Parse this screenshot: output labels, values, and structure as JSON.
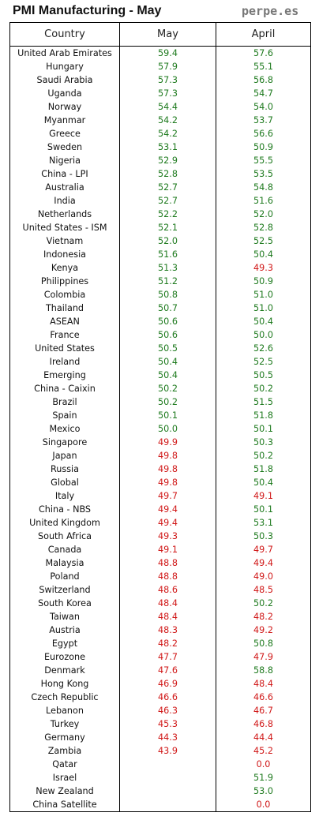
{
  "title": "PMI Manufacturing - May",
  "brand": "perpe.es",
  "colors": {
    "expansion": "#1e7a1e",
    "contraction": "#d01818"
  },
  "headers": {
    "country": "Country",
    "may": "May",
    "april": "April"
  },
  "rows": [
    {
      "country": "United Arab Emirates",
      "may": "59.4",
      "april": "57.6"
    },
    {
      "country": "Hungary",
      "may": "57.9",
      "april": "55.1"
    },
    {
      "country": "Saudi Arabia",
      "may": "57.3",
      "april": "56.8"
    },
    {
      "country": "Uganda",
      "may": "57.3",
      "april": "54.7"
    },
    {
      "country": "Norway",
      "may": "54.4",
      "april": "54.0"
    },
    {
      "country": "Myanmar",
      "may": "54.2",
      "april": "53.7"
    },
    {
      "country": "Greece",
      "may": "54.2",
      "april": "56.6"
    },
    {
      "country": "Sweden",
      "may": "53.1",
      "april": "50.9"
    },
    {
      "country": "Nigeria",
      "may": "52.9",
      "april": "55.5"
    },
    {
      "country": "China - LPI",
      "may": "52.8",
      "april": "53.5"
    },
    {
      "country": "Australia",
      "may": "52.7",
      "april": "54.8"
    },
    {
      "country": "India",
      "may": "52.7",
      "april": "51.6"
    },
    {
      "country": "Netherlands",
      "may": "52.2",
      "april": "52.0"
    },
    {
      "country": "United States - ISM",
      "may": "52.1",
      "april": "52.8"
    },
    {
      "country": "Vietnam",
      "may": "52.0",
      "april": "52.5"
    },
    {
      "country": "Indonesia",
      "may": "51.6",
      "april": "50.4"
    },
    {
      "country": "Kenya",
      "may": "51.3",
      "april": "49.3"
    },
    {
      "country": "Philippines",
      "may": "51.2",
      "april": "50.9"
    },
    {
      "country": "Colombia",
      "may": "50.8",
      "april": "51.0"
    },
    {
      "country": "Thailand",
      "may": "50.7",
      "april": "51.0"
    },
    {
      "country": "ASEAN",
      "may": "50.6",
      "april": "50.4"
    },
    {
      "country": "France",
      "may": "50.6",
      "april": "50.0"
    },
    {
      "country": "United States",
      "may": "50.5",
      "april": "52.6"
    },
    {
      "country": "Ireland",
      "may": "50.4",
      "april": "52.5"
    },
    {
      "country": "Emerging",
      "may": "50.4",
      "april": "50.5"
    },
    {
      "country": "China - Caixin",
      "may": "50.2",
      "april": "50.2"
    },
    {
      "country": "Brazil",
      "may": "50.2",
      "april": "51.5"
    },
    {
      "country": "Spain",
      "may": "50.1",
      "april": "51.8"
    },
    {
      "country": "Mexico",
      "may": "50.0",
      "april": "50.1"
    },
    {
      "country": "Singapore",
      "may": "49.9",
      "april": "50.3"
    },
    {
      "country": "Japan",
      "may": "49.8",
      "april": "50.2"
    },
    {
      "country": "Russia",
      "may": "49.8",
      "april": "51.8"
    },
    {
      "country": "Global",
      "may": "49.8",
      "april": "50.4"
    },
    {
      "country": "Italy",
      "may": "49.7",
      "april": "49.1"
    },
    {
      "country": "China - NBS",
      "may": "49.4",
      "april": "50.1"
    },
    {
      "country": "United Kingdom",
      "may": "49.4",
      "april": "53.1"
    },
    {
      "country": "South Africa",
      "may": "49.3",
      "april": "50.3"
    },
    {
      "country": "Canada",
      "may": "49.1",
      "april": "49.7"
    },
    {
      "country": "Malaysia",
      "may": "48.8",
      "april": "49.4"
    },
    {
      "country": "Poland",
      "may": "48.8",
      "april": "49.0"
    },
    {
      "country": "Switzerland",
      "may": "48.6",
      "april": "48.5"
    },
    {
      "country": "South Korea",
      "may": "48.4",
      "april": "50.2"
    },
    {
      "country": "Taiwan",
      "may": "48.4",
      "april": "48.2"
    },
    {
      "country": "Austria",
      "may": "48.3",
      "april": "49.2"
    },
    {
      "country": "Egypt",
      "may": "48.2",
      "april": "50.8"
    },
    {
      "country": "Eurozone",
      "may": "47.7",
      "april": "47.9"
    },
    {
      "country": "Denmark",
      "may": "47.6",
      "april": "58.8"
    },
    {
      "country": "Hong Kong",
      "may": "46.9",
      "april": "48.4"
    },
    {
      "country": "Czech Republic",
      "may": "46.6",
      "april": "46.6"
    },
    {
      "country": "Lebanon",
      "may": "46.3",
      "april": "46.7"
    },
    {
      "country": "Turkey",
      "may": "45.3",
      "april": "46.8"
    },
    {
      "country": "Germany",
      "may": "44.3",
      "april": "44.4"
    },
    {
      "country": "Zambia",
      "may": "43.9",
      "april": "45.2"
    },
    {
      "country": "Qatar",
      "may": "",
      "april": "0.0"
    },
    {
      "country": "Israel",
      "may": "",
      "april": "51.9"
    },
    {
      "country": "New Zealand",
      "may": "",
      "april": "53.0"
    },
    {
      "country": "China Satellite",
      "may": "",
      "april": "0.0"
    }
  ]
}
